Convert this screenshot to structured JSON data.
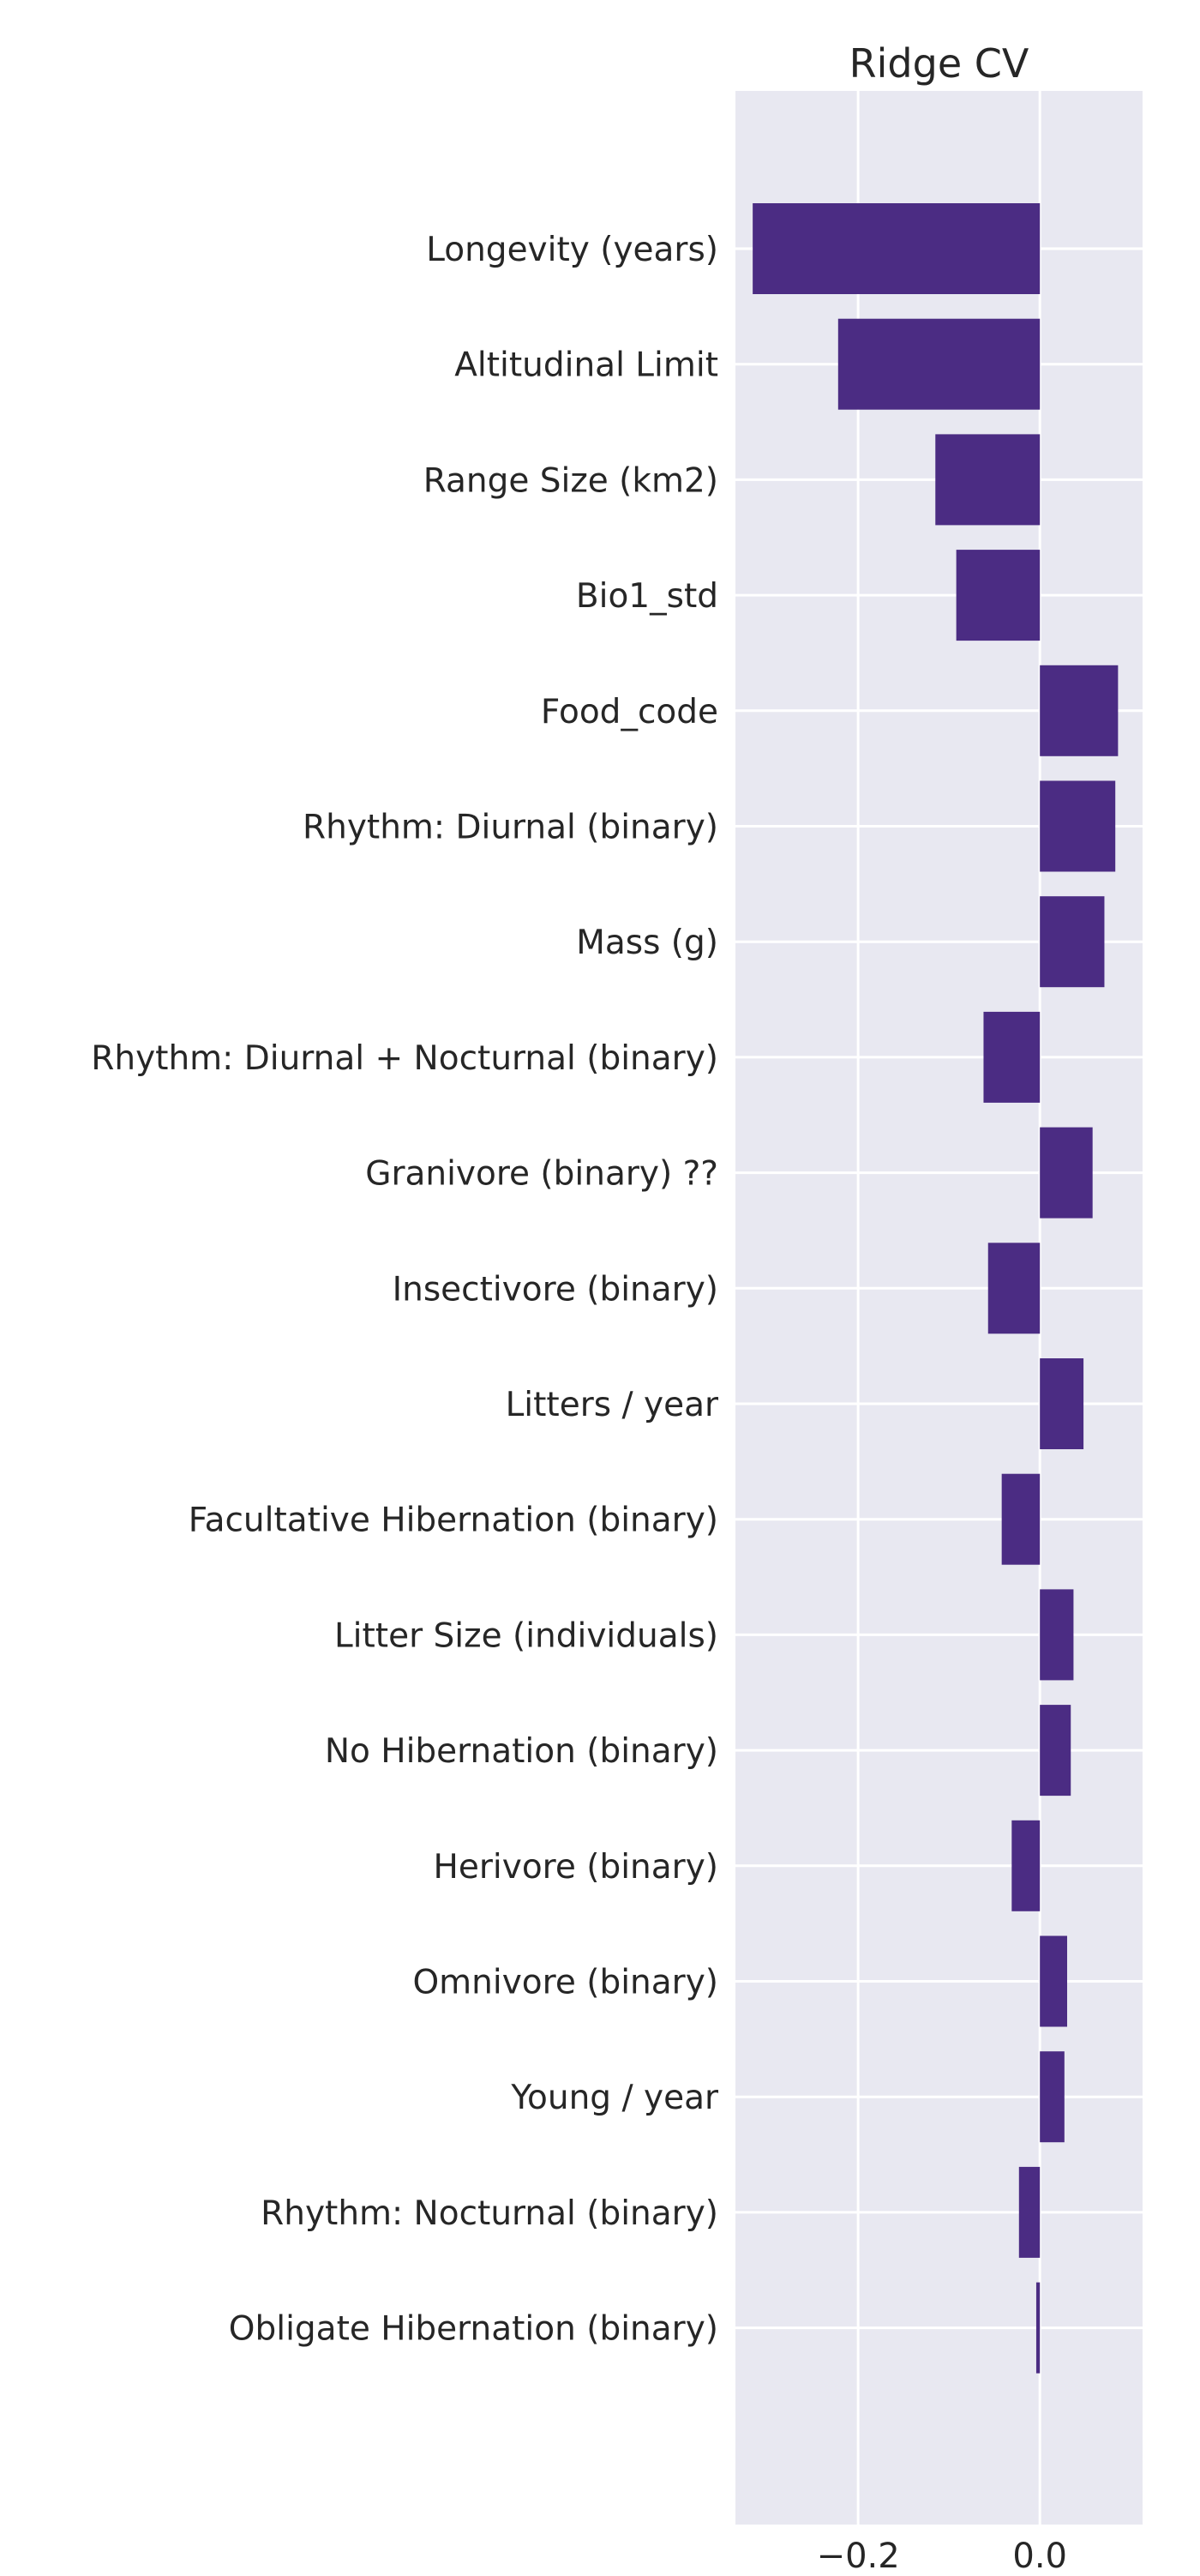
{
  "chart_data": {
    "type": "bar",
    "orientation": "horizontal",
    "title": "Ridge CV",
    "xlabel": "",
    "ylabel": "",
    "xlim": [
      -0.335,
      0.113
    ],
    "xticks": [
      -0.2,
      0.0
    ],
    "xtick_labels": [
      "−0.2",
      "0.0"
    ],
    "grid": true,
    "categories": [
      "Longevity (years)",
      "Altitudinal Limit",
      "Range Size (km2)",
      "Bio1_std",
      "Food_code",
      "Rhythm: Diurnal (binary)",
      "Mass (g)",
      "Rhythm: Diurnal + Nocturnal (binary)",
      "Granivore (binary) ??",
      "Insectivore (binary)",
      "Litters / year",
      "Facultative Hibernation (binary) ",
      "Litter Size (individuals)",
      "No Hibernation (binary)",
      "Herivore (binary)",
      "Omnivore (binary)",
      "Young / year",
      "Rhythm: Nocturnal (binary)",
      "Obligate Hibernation (binary)"
    ],
    "values": [
      -0.316,
      -0.222,
      -0.115,
      -0.092,
      0.086,
      0.083,
      0.071,
      -0.062,
      0.058,
      -0.057,
      0.048,
      -0.042,
      0.037,
      0.034,
      -0.031,
      0.03,
      0.027,
      -0.023,
      -0.004
    ],
    "colors": {
      "bar": "#4b2c83",
      "plot_background": "#e8e8f1",
      "grid": "#ffffff",
      "text": "#262626"
    }
  }
}
